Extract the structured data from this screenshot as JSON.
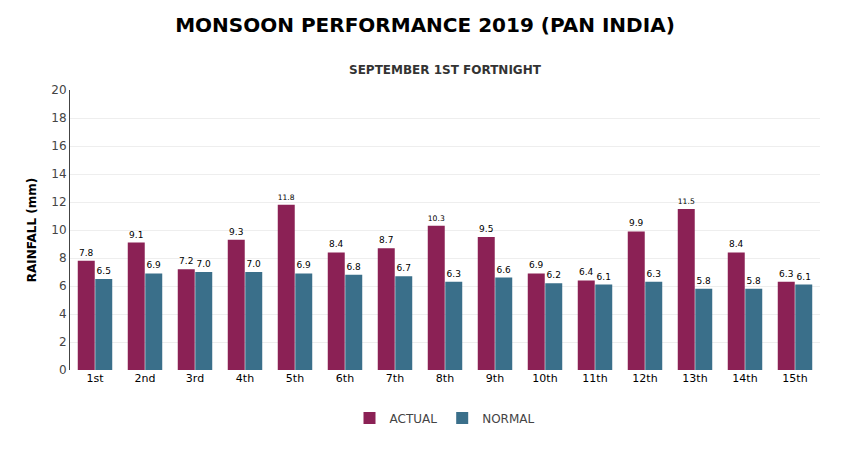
{
  "chart_data": {
    "type": "bar",
    "title": "MONSOON PERFORMANCE 2019 (PAN INDIA)",
    "subtitle": "SEPTEMBER 1ST FORTNIGHT",
    "ylabel": "RAINFALL (mm)",
    "categories": [
      "1st",
      "2nd",
      "3rd",
      "4th",
      "5th",
      "6th",
      "7th",
      "8th",
      "9th",
      "10th",
      "11th",
      "12th",
      "13th",
      "14th",
      "15th"
    ],
    "series": [
      {
        "name": "ACTUAL",
        "color": "#8b2155",
        "values": [
          7.8,
          9.1,
          7.2,
          9.3,
          11.8,
          8.4,
          8.7,
          10.3,
          9.5,
          6.9,
          6.4,
          9.9,
          11.5,
          8.4,
          6.3
        ]
      },
      {
        "name": "NORMAL",
        "color": "#3a6f8a",
        "values": [
          6.5,
          6.9,
          7.0,
          7.0,
          6.9,
          6.8,
          6.7,
          6.3,
          6.6,
          6.2,
          6.1,
          6.3,
          5.8,
          5.8,
          6.1
        ],
        "value_labels": [
          "6.5",
          "6.9",
          "7.0",
          "7.0",
          "6.9",
          "6.8",
          "6.7",
          "6.3",
          "6.6",
          "6.2",
          "6.1",
          "6.3",
          "5.8",
          "5.8",
          "6.1"
        ]
      }
    ],
    "ylim": [
      0,
      20
    ],
    "yticks": [
      0,
      2,
      4,
      6,
      8,
      10,
      12,
      14,
      16,
      18,
      20
    ],
    "grid": true,
    "data_labels": true,
    "legend": "bottom"
  }
}
